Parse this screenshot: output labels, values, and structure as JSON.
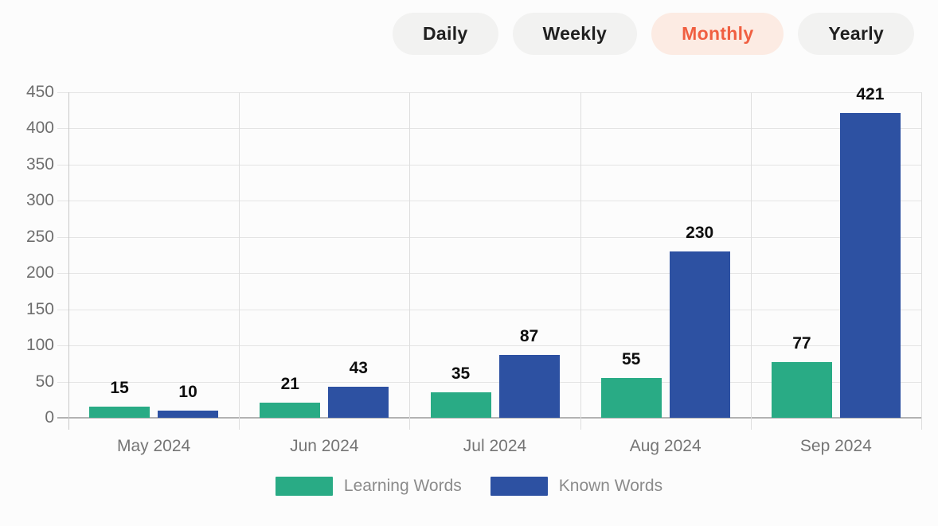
{
  "tabs": {
    "items": [
      {
        "label": "Daily",
        "active": false
      },
      {
        "label": "Weekly",
        "active": false
      },
      {
        "label": "Monthly",
        "active": true
      },
      {
        "label": "Yearly",
        "active": false
      }
    ]
  },
  "colors": {
    "page_background": "#fcfcfc",
    "pill_background": "#f2f2f1",
    "pill_text": "#202020",
    "active_pill_background": "#fcebe3",
    "active_pill_text": "#f05f41",
    "gridline": "#e4e4e4",
    "baseline": "#b3b3b3",
    "vertical_gridline": "#dedede",
    "tick_text": "#6e6e6e",
    "value_label_text": "#0e0e0e",
    "category_text": "#757575",
    "legend_text": "#8b8b8b",
    "learning_green": "#29ab85",
    "known_blue": "#2d51a2"
  },
  "chart_data": {
    "type": "bar",
    "title": "",
    "xlabel": "",
    "ylabel": "",
    "categories": [
      "May 2024",
      "Jun 2024",
      "Jul 2024",
      "Aug 2024",
      "Sep 2024"
    ],
    "series": [
      {
        "name": "Learning Words",
        "color": "#29ab85",
        "values": [
          15,
          21,
          35,
          55,
          77
        ]
      },
      {
        "name": "Known Words",
        "color": "#2d51a2",
        "values": [
          10,
          43,
          87,
          230,
          421
        ]
      }
    ],
    "ylim": [
      0,
      450
    ],
    "yticks": [
      0,
      50,
      100,
      150,
      200,
      250,
      300,
      350,
      400,
      450
    ],
    "grid": true,
    "legend_position": "bottom",
    "data_labels": true
  }
}
